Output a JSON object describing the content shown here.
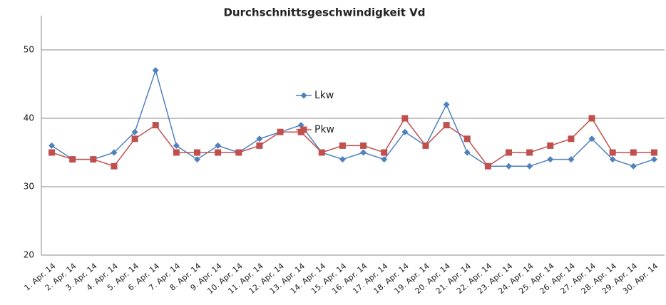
{
  "chart_data": {
    "type": "line",
    "title": "Durchschnittsgeschwindigkeit Vd",
    "categories": [
      "1. Apr. 14",
      "2. Apr. 14",
      "3. Apr. 14",
      "4. Apr. 14",
      "5. Apr. 14",
      "6. Apr. 14",
      "7. Apr. 14",
      "8. Apr. 14",
      "9. Apr. 14",
      "10. Apr. 14",
      "11. Apr. 14",
      "12. Apr. 14",
      "13. Apr. 14",
      "14. Apr. 14",
      "15. Apr. 14",
      "16. Apr. 14",
      "17. Apr. 14",
      "18. Apr. 14",
      "19. Apr. 14",
      "20. Apr. 14",
      "21. Apr. 14",
      "22. Apr. 14",
      "23. Apr. 14",
      "24. Apr. 14",
      "25. Apr. 14",
      "26. Apr. 14",
      "27. Apr. 14",
      "28. Apr. 14",
      "29. Apr. 14",
      "30. Apr. 14"
    ],
    "series": [
      {
        "name": "Lkw",
        "color": "#4f81bd",
        "marker": "diamond",
        "values": [
          36,
          34,
          34,
          35,
          38,
          47,
          36,
          34,
          36,
          35,
          37,
          38,
          39,
          35,
          34,
          35,
          34,
          38,
          36,
          42,
          35,
          33,
          33,
          33,
          34,
          34,
          37,
          34,
          33,
          34
        ]
      },
      {
        "name": "Pkw",
        "color": "#c0504d",
        "marker": "square",
        "values": [
          35,
          34,
          34,
          33,
          37,
          39,
          35,
          35,
          35,
          35,
          36,
          38,
          38,
          35,
          36,
          36,
          35,
          40,
          36,
          39,
          37,
          33,
          35,
          35,
          36,
          37,
          40,
          35,
          35,
          35
        ]
      }
    ],
    "ylim": [
      20,
      55
    ],
    "yticks": [
      20,
      30,
      40,
      50
    ],
    "grid": true
  }
}
